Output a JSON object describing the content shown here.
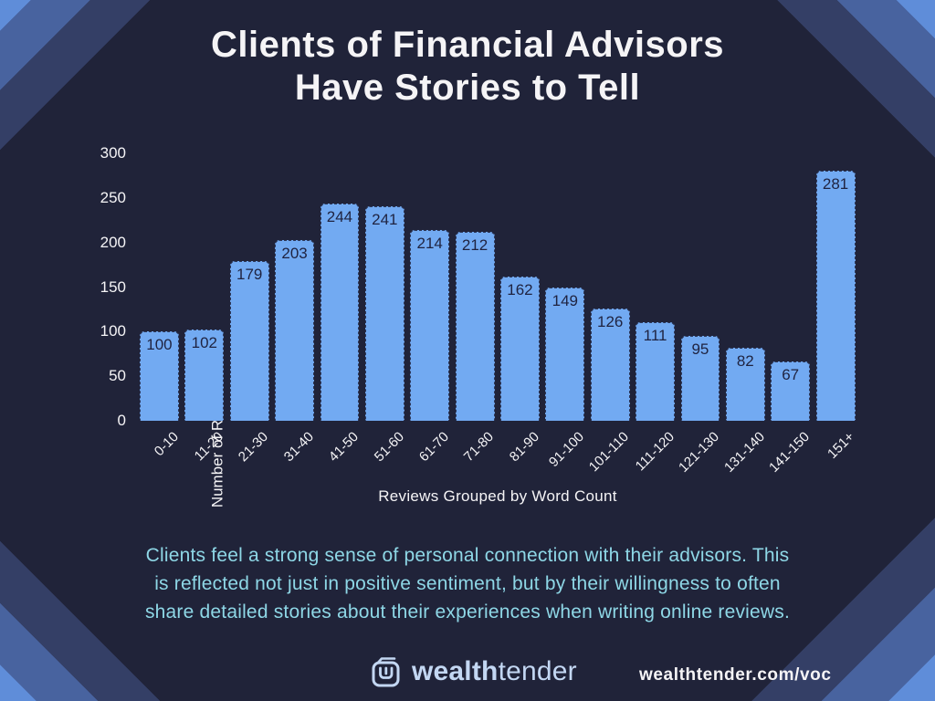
{
  "page": {
    "title_line1": "Clients of Financial Advisors",
    "title_line2": "Have Stories to Tell"
  },
  "chart_data": {
    "type": "bar",
    "title": "Clients of Financial Advisors Have Stories to Tell",
    "categories": [
      "0-10",
      "11-20",
      "21-30",
      "31-40",
      "41-50",
      "51-60",
      "61-70",
      "71-80",
      "81-90",
      "91-100",
      "101-110",
      "111-120",
      "121-130",
      "131-140",
      "141-150",
      "151+"
    ],
    "values": [
      100,
      102,
      179,
      203,
      244,
      241,
      214,
      212,
      162,
      149,
      126,
      111,
      95,
      82,
      67,
      281
    ],
    "xlabel": "Reviews Grouped by Word Count",
    "ylabel": "Number of Reviews",
    "yticks": [
      300,
      250,
      200,
      150,
      100,
      50,
      0
    ],
    "ylim": [
      0,
      300
    ],
    "grid": false,
    "legend": "none",
    "bar_color": "#72aaf2",
    "bar_label_color": "#1f2340",
    "tick_label_rotation_deg": 45
  },
  "subtitle": {
    "lines": [
      "Clients feel a strong sense of personal connection with their advisors. This",
      "is reflected not just in positive sentiment, but by their willingness to often",
      "share detailed stories about their experiences when writing online reviews."
    ]
  },
  "footer": {
    "logo_icon": "wealthtender-logo",
    "logo_bold": "wealth",
    "logo_light": "tender",
    "url": "wealthtender.com/voc"
  },
  "colors": {
    "background": "#202339",
    "corner_bright_blue": "#5f8dd9",
    "corner_medium_blue": "#48639f",
    "corner_slate_blue": "#343f66",
    "bar_fill": "#72aaf2",
    "bar_value_text": "#1f2340",
    "axis_text": "#f5f4f6",
    "subtitle_teal": "#8ed7e6",
    "logo_light_blue": "#c3d7f3"
  }
}
